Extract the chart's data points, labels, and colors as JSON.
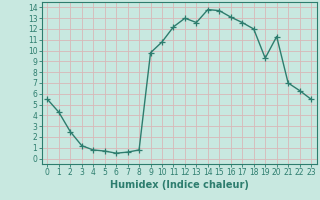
{
  "x": [
    0,
    1,
    2,
    3,
    4,
    5,
    6,
    7,
    8,
    9,
    10,
    11,
    12,
    13,
    14,
    15,
    16,
    17,
    18,
    19,
    20,
    21,
    22,
    23
  ],
  "y": [
    5.5,
    4.3,
    2.5,
    1.2,
    0.8,
    0.7,
    0.5,
    0.6,
    0.8,
    9.8,
    10.8,
    12.2,
    13.0,
    12.6,
    13.8,
    13.7,
    13.1,
    12.6,
    12.0,
    9.3,
    11.3,
    7.0,
    6.3,
    5.5
  ],
  "line_color": "#2d7d6e",
  "marker": "+",
  "markersize": 4,
  "linewidth": 1.0,
  "xlabel": "Humidex (Indice chaleur)",
  "xlim": [
    -0.5,
    23.5
  ],
  "ylim": [
    -0.5,
    14.5
  ],
  "xticks": [
    0,
    1,
    2,
    3,
    4,
    5,
    6,
    7,
    8,
    9,
    10,
    11,
    12,
    13,
    14,
    15,
    16,
    17,
    18,
    19,
    20,
    21,
    22,
    23
  ],
  "yticks": [
    0,
    1,
    2,
    3,
    4,
    5,
    6,
    7,
    8,
    9,
    10,
    11,
    12,
    13,
    14
  ],
  "bg_color": "#c8e8e0",
  "grid_color": "#d8b8b8",
  "tick_label_fontsize": 5.5,
  "xlabel_fontsize": 7,
  "markeredgewidth": 0.9
}
